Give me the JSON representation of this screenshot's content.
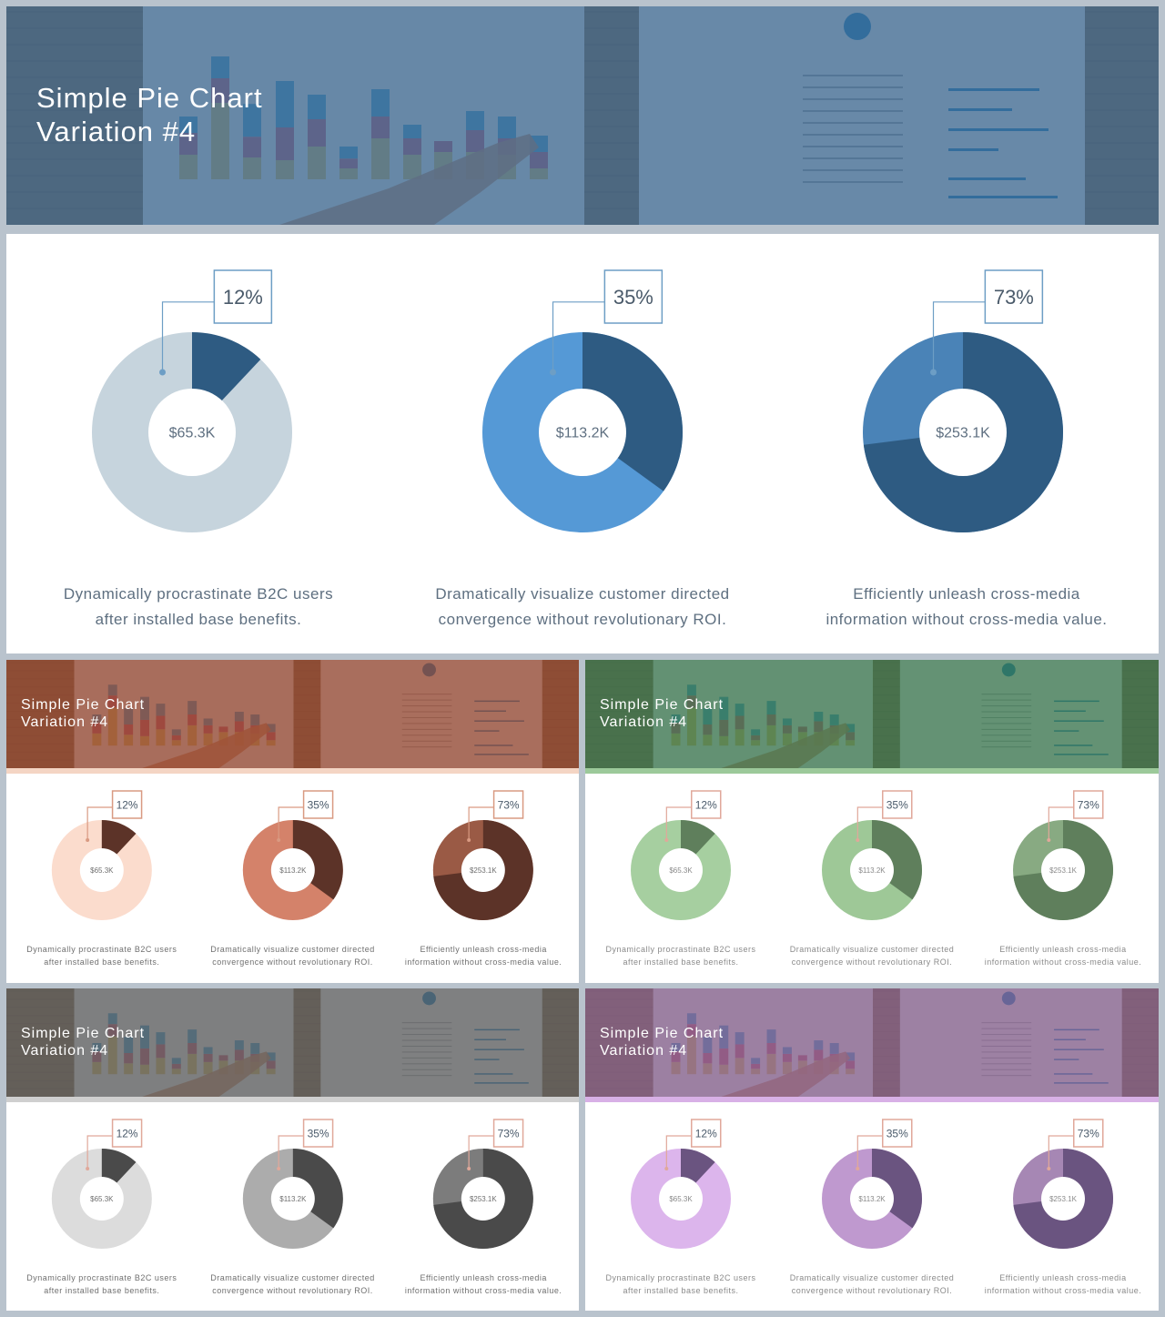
{
  "slides": [
    {
      "id": "blue",
      "banner_title_line1": "Simple Pie Chart",
      "banner_title_line2": "Variation #4",
      "tint": "#35618a",
      "bottom_line": "#b9c3cd",
      "callout_color": "#6d9ec5",
      "text_color": "#5e6f80",
      "charts": [
        {
          "percent_label": "12%",
          "center_label": "$65.3K",
          "desc_line1": "Dynamically procrastinate B2C users",
          "desc_line2": "after installed base benefits.",
          "fill_fraction": 0.12,
          "fill_color": "#2e5b82",
          "rest_color": "#c6d4dd"
        },
        {
          "percent_label": "35%",
          "center_label": "$113.2K",
          "desc_line1": "Dramatically visualize customer directed",
          "desc_line2": "convergence without revolutionary ROI.",
          "fill_fraction": 0.35,
          "fill_color": "#2e5b82",
          "rest_color": "#5599d6"
        },
        {
          "percent_label": "73%",
          "center_label": "$253.1K",
          "desc_line1": "Efficiently unleash cross-media",
          "desc_line2": "information without cross-media value.",
          "fill_fraction": 0.73,
          "fill_color": "#2e5b82",
          "rest_color": "#4a83b7"
        }
      ]
    },
    {
      "id": "orange",
      "banner_title_line1": "Simple Pie Chart",
      "banner_title_line2": "Variation #4",
      "tint": "#8f3b22",
      "bottom_line": "#f4d5c4",
      "callout_color": "#d99a82",
      "text_color": "#6f6f6f",
      "charts": [
        {
          "percent_label": "12%",
          "center_label": "$65.3K",
          "desc_line1": "Dynamically procrastinate B2C users",
          "desc_line2": "after installed base benefits.",
          "fill_fraction": 0.12,
          "fill_color": "#5c3328",
          "rest_color": "#fbdccd"
        },
        {
          "percent_label": "35%",
          "center_label": "$113.2K",
          "desc_line1": "Dramatically visualize customer directed",
          "desc_line2": "convergence without revolutionary ROI.",
          "fill_fraction": 0.35,
          "fill_color": "#5c3328",
          "rest_color": "#d4826a"
        },
        {
          "percent_label": "73%",
          "center_label": "$253.1K",
          "desc_line1": "Efficiently unleash cross-media",
          "desc_line2": "information without cross-media value.",
          "fill_fraction": 0.73,
          "fill_color": "#5c3328",
          "rest_color": "#9a5a45"
        }
      ]
    },
    {
      "id": "green",
      "banner_title_line1": "Simple Pie Chart",
      "banner_title_line2": "Variation #4",
      "tint": "#2f6e43",
      "bottom_line": "#9cc99a",
      "callout_color": "#e0a89a",
      "text_color": "#8a8a8a",
      "charts": [
        {
          "percent_label": "12%",
          "center_label": "$65.3K",
          "desc_line1": "Dynamically procrastinate B2C users",
          "desc_line2": "after installed base benefits.",
          "fill_fraction": 0.12,
          "fill_color": "#5f7f5c",
          "rest_color": "#a6cfa0"
        },
        {
          "percent_label": "35%",
          "center_label": "$113.2K",
          "desc_line1": "Dramatically visualize customer directed",
          "desc_line2": "convergence without revolutionary ROI.",
          "fill_fraction": 0.35,
          "fill_color": "#5f7f5c",
          "rest_color": "#9ec897"
        },
        {
          "percent_label": "73%",
          "center_label": "$253.1K",
          "desc_line1": "Efficiently unleash cross-media",
          "desc_line2": "information without cross-media value.",
          "fill_fraction": 0.73,
          "fill_color": "#5f7f5c",
          "rest_color": "#88aa82"
        }
      ]
    },
    {
      "id": "gray",
      "banner_title_line1": "Simple Pie Chart",
      "banner_title_line2": "Variation #4",
      "tint": "#555555",
      "bottom_line": "#cfcfcf",
      "callout_color": "#e0a89a",
      "text_color": "#6f6f6f",
      "charts": [
        {
          "percent_label": "12%",
          "center_label": "$65.3K",
          "desc_line1": "Dynamically procrastinate B2C users",
          "desc_line2": "after installed base benefits.",
          "fill_fraction": 0.12,
          "fill_color": "#4a4a4a",
          "rest_color": "#dcdcdc"
        },
        {
          "percent_label": "35%",
          "center_label": "$113.2K",
          "desc_line1": "Dramatically visualize customer directed",
          "desc_line2": "convergence without revolutionary ROI.",
          "fill_fraction": 0.35,
          "fill_color": "#4a4a4a",
          "rest_color": "#acacac"
        },
        {
          "percent_label": "73%",
          "center_label": "$253.1K",
          "desc_line1": "Efficiently unleash cross-media",
          "desc_line2": "information without cross-media value.",
          "fill_fraction": 0.73,
          "fill_color": "#4a4a4a",
          "rest_color": "#7c7c7c"
        }
      ]
    },
    {
      "id": "purple",
      "banner_title_line1": "Simple Pie Chart",
      "banner_title_line2": "Variation #4",
      "tint": "#7e5683",
      "bottom_line": "#d8b0e6",
      "callout_color": "#e0a89a",
      "text_color": "#8a8a8a",
      "charts": [
        {
          "percent_label": "12%",
          "center_label": "$65.3K",
          "desc_line1": "Dynamically procrastinate B2C users",
          "desc_line2": "after installed base benefits.",
          "fill_fraction": 0.12,
          "fill_color": "#6a5480",
          "rest_color": "#dcb5ec"
        },
        {
          "percent_label": "35%",
          "center_label": "$113.2K",
          "desc_line1": "Dramatically visualize customer directed",
          "desc_line2": "convergence without revolutionary ROI.",
          "fill_fraction": 0.35,
          "fill_color": "#6a5480",
          "rest_color": "#bf99cf"
        },
        {
          "percent_label": "73%",
          "center_label": "$253.1K",
          "desc_line1": "Efficiently unleash cross-media",
          "desc_line2": "information without cross-media value.",
          "fill_fraction": 0.73,
          "fill_color": "#6a5480",
          "rest_color": "#a687b4"
        }
      ]
    }
  ]
}
